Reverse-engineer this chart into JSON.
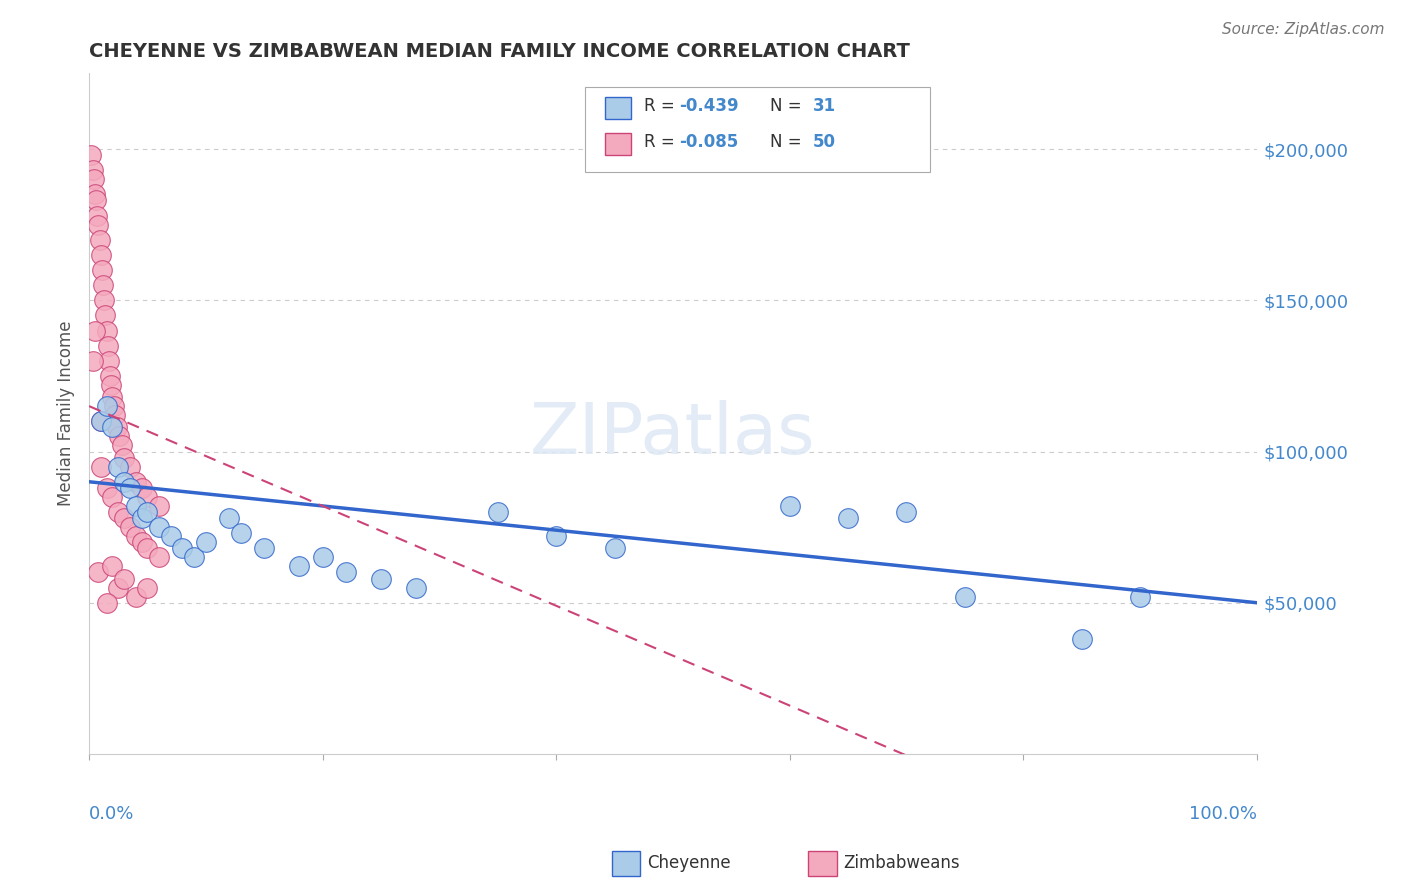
{
  "title": "CHEYENNE VS ZIMBABWEAN MEDIAN FAMILY INCOME CORRELATION CHART",
  "source": "Source: ZipAtlas.com",
  "ylabel": "Median Family Income",
  "ytick_labels": [
    "$50,000",
    "$100,000",
    "$150,000",
    "$200,000"
  ],
  "ytick_values": [
    50000,
    100000,
    150000,
    200000
  ],
  "ylim": [
    0,
    225000
  ],
  "xlim": [
    0.0,
    1.0
  ],
  "cheyenne_color": "#aacce8",
  "zimbabwean_color": "#f4aabe",
  "cheyenne_line_color": "#3366cc",
  "zimbabwean_line_color": "#cc4477",
  "cheyenne_R": -0.439,
  "cheyenne_N": 31,
  "zimbabwean_R": -0.085,
  "zimbabwean_N": 50,
  "cheyenne_scatter": [
    [
      0.01,
      110000
    ],
    [
      0.015,
      115000
    ],
    [
      0.02,
      108000
    ],
    [
      0.025,
      95000
    ],
    [
      0.03,
      90000
    ],
    [
      0.035,
      88000
    ],
    [
      0.04,
      82000
    ],
    [
      0.045,
      78000
    ],
    [
      0.05,
      80000
    ],
    [
      0.06,
      75000
    ],
    [
      0.07,
      72000
    ],
    [
      0.08,
      68000
    ],
    [
      0.09,
      65000
    ],
    [
      0.1,
      70000
    ],
    [
      0.12,
      78000
    ],
    [
      0.13,
      73000
    ],
    [
      0.15,
      68000
    ],
    [
      0.18,
      62000
    ],
    [
      0.2,
      65000
    ],
    [
      0.22,
      60000
    ],
    [
      0.25,
      58000
    ],
    [
      0.28,
      55000
    ],
    [
      0.35,
      80000
    ],
    [
      0.4,
      72000
    ],
    [
      0.45,
      68000
    ],
    [
      0.6,
      82000
    ],
    [
      0.65,
      78000
    ],
    [
      0.7,
      80000
    ],
    [
      0.75,
      52000
    ],
    [
      0.85,
      38000
    ],
    [
      0.9,
      52000
    ]
  ],
  "zimbabwean_scatter": [
    [
      0.002,
      198000
    ],
    [
      0.003,
      193000
    ],
    [
      0.004,
      190000
    ],
    [
      0.005,
      185000
    ],
    [
      0.006,
      183000
    ],
    [
      0.007,
      178000
    ],
    [
      0.008,
      175000
    ],
    [
      0.009,
      170000
    ],
    [
      0.01,
      165000
    ],
    [
      0.011,
      160000
    ],
    [
      0.012,
      155000
    ],
    [
      0.013,
      150000
    ],
    [
      0.014,
      145000
    ],
    [
      0.015,
      140000
    ],
    [
      0.016,
      135000
    ],
    [
      0.017,
      130000
    ],
    [
      0.018,
      125000
    ],
    [
      0.019,
      122000
    ],
    [
      0.02,
      118000
    ],
    [
      0.021,
      115000
    ],
    [
      0.022,
      112000
    ],
    [
      0.024,
      108000
    ],
    [
      0.026,
      105000
    ],
    [
      0.028,
      102000
    ],
    [
      0.03,
      98000
    ],
    [
      0.035,
      95000
    ],
    [
      0.04,
      90000
    ],
    [
      0.045,
      88000
    ],
    [
      0.05,
      85000
    ],
    [
      0.06,
      82000
    ],
    [
      0.01,
      95000
    ],
    [
      0.015,
      88000
    ],
    [
      0.02,
      85000
    ],
    [
      0.025,
      80000
    ],
    [
      0.03,
      78000
    ],
    [
      0.035,
      75000
    ],
    [
      0.04,
      72000
    ],
    [
      0.045,
      70000
    ],
    [
      0.05,
      68000
    ],
    [
      0.008,
      60000
    ],
    [
      0.06,
      65000
    ],
    [
      0.025,
      55000
    ],
    [
      0.04,
      52000
    ],
    [
      0.015,
      50000
    ],
    [
      0.003,
      130000
    ],
    [
      0.02,
      62000
    ],
    [
      0.03,
      58000
    ],
    [
      0.05,
      55000
    ],
    [
      0.005,
      140000
    ],
    [
      0.01,
      110000
    ]
  ]
}
